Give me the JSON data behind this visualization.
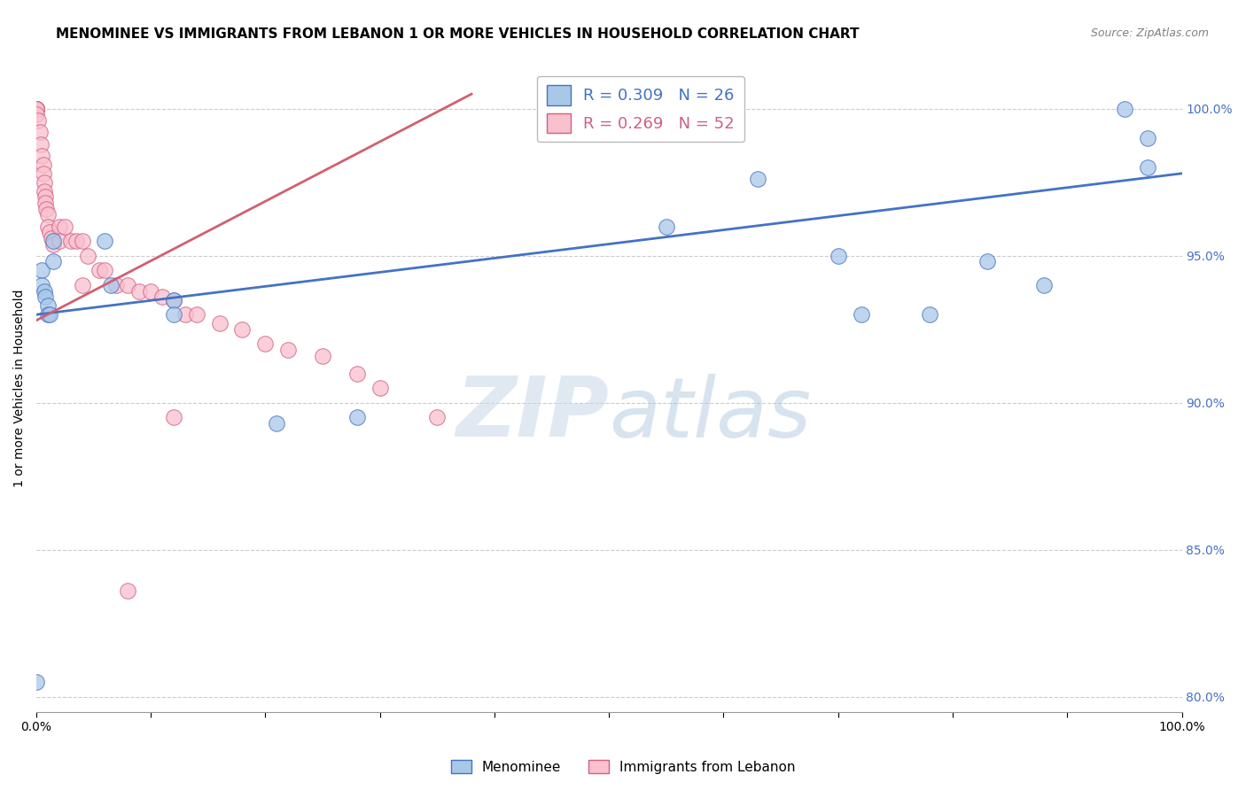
{
  "title": "MENOMINEE VS IMMIGRANTS FROM LEBANON 1 OR MORE VEHICLES IN HOUSEHOLD CORRELATION CHART",
  "source": "Source: ZipAtlas.com",
  "ylabel": "1 or more Vehicles in Household",
  "legend_blue_r": "R = 0.309",
  "legend_blue_n": "N = 26",
  "legend_pink_r": "R = 0.269",
  "legend_pink_n": "N = 52",
  "watermark_zip": "ZIP",
  "watermark_atlas": "atlas",
  "blue_scatter_x": [
    0.0,
    0.005,
    0.005,
    0.007,
    0.008,
    0.01,
    0.01,
    0.012,
    0.015,
    0.015,
    0.06,
    0.065,
    0.12,
    0.12,
    0.21,
    0.28,
    0.55,
    0.63,
    0.7,
    0.72,
    0.78,
    0.83,
    0.88,
    0.95,
    0.97,
    0.97
  ],
  "blue_scatter_y": [
    0.805,
    0.945,
    0.94,
    0.938,
    0.936,
    0.933,
    0.93,
    0.93,
    0.955,
    0.948,
    0.955,
    0.94,
    0.935,
    0.93,
    0.893,
    0.895,
    0.96,
    0.976,
    0.95,
    0.93,
    0.93,
    0.948,
    0.94,
    1.0,
    0.99,
    0.98
  ],
  "pink_scatter_x": [
    0.0,
    0.0,
    0.0,
    0.0,
    0.0,
    0.0,
    0.0,
    0.0,
    0.002,
    0.003,
    0.004,
    0.005,
    0.006,
    0.006,
    0.007,
    0.007,
    0.008,
    0.008,
    0.009,
    0.01,
    0.01,
    0.012,
    0.013,
    0.015,
    0.02,
    0.02,
    0.025,
    0.03,
    0.035,
    0.04,
    0.04,
    0.045,
    0.055,
    0.06,
    0.07,
    0.08,
    0.09,
    0.1,
    0.11,
    0.12,
    0.13,
    0.14,
    0.16,
    0.18,
    0.2,
    0.22,
    0.25,
    0.28,
    0.3,
    0.35,
    0.12,
    0.08
  ],
  "pink_scatter_y": [
    1.0,
    1.0,
    1.0,
    1.0,
    1.0,
    1.0,
    1.0,
    0.998,
    0.996,
    0.992,
    0.988,
    0.984,
    0.981,
    0.978,
    0.975,
    0.972,
    0.97,
    0.968,
    0.966,
    0.964,
    0.96,
    0.958,
    0.956,
    0.954,
    0.96,
    0.955,
    0.96,
    0.955,
    0.955,
    0.955,
    0.94,
    0.95,
    0.945,
    0.945,
    0.94,
    0.94,
    0.938,
    0.938,
    0.936,
    0.935,
    0.93,
    0.93,
    0.927,
    0.925,
    0.92,
    0.918,
    0.916,
    0.91,
    0.905,
    0.895,
    0.895,
    0.836
  ],
  "blue_line_x": [
    0.0,
    1.0
  ],
  "blue_line_y": [
    0.93,
    0.978
  ],
  "pink_line_x": [
    0.0,
    0.38
  ],
  "pink_line_y": [
    0.928,
    1.005
  ],
  "xlim": [
    0.0,
    1.0
  ],
  "ylim": [
    0.795,
    1.015
  ],
  "yticks": [
    0.8,
    0.85,
    0.9,
    0.95,
    1.0
  ],
  "ytick_labels": [
    "80.0%",
    "85.0%",
    "90.0%",
    "95.0%",
    "100.0%"
  ],
  "blue_color": "#a8c8e8",
  "blue_edge_color": "#4472c4",
  "pink_color": "#f9c0ce",
  "pink_edge_color": "#d06080",
  "blue_line_color": "#4472c4",
  "pink_line_color": "#d06070",
  "grid_color": "#cccccc",
  "right_axis_color": "#4472c4",
  "title_fontsize": 11,
  "source_fontsize": 9,
  "legend_fontsize": 13,
  "ylabel_fontsize": 10,
  "tick_fontsize": 10
}
